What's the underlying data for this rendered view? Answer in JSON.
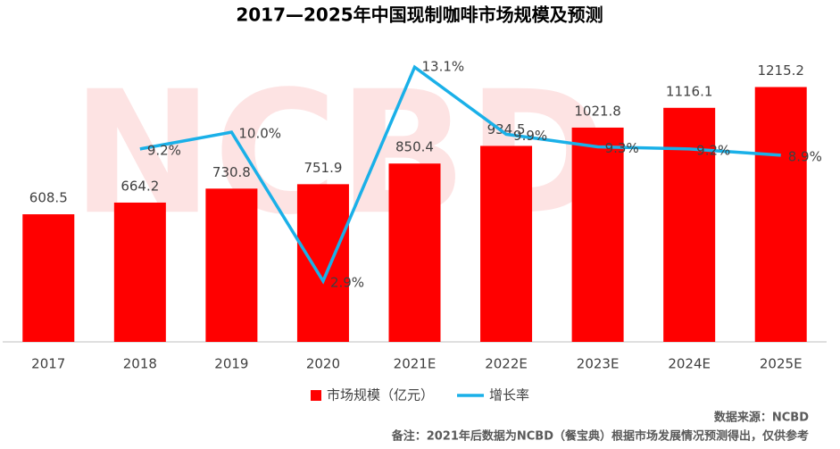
{
  "chart_data": {
    "type": "bar-line",
    "title": "2017—2025年中国现制咖啡市场规模及预测",
    "watermark": "NCBD",
    "categories": [
      "2017",
      "2018",
      "2019",
      "2020",
      "2021E",
      "2022E",
      "2023E",
      "2024E",
      "2025E"
    ],
    "series": [
      {
        "name": "市场规模（亿元）",
        "type": "bar",
        "color": "#ff0000",
        "axis": "y",
        "values": [
          608.5,
          664.2,
          730.8,
          751.9,
          850.4,
          934.5,
          1021.8,
          1116.1,
          1215.2
        ]
      },
      {
        "name": "增长率",
        "type": "line",
        "color": "#1ab0e8",
        "axis": "y2",
        "values": [
          null,
          9.2,
          10.0,
          2.9,
          13.1,
          9.9,
          9.3,
          9.2,
          8.9
        ],
        "value_labels": [
          null,
          "9.2%",
          "10.0%",
          "2.9%",
          "13.1%",
          "9.9%",
          "9.3%",
          "9.2%",
          "8.9%"
        ]
      }
    ],
    "ylim": [
      0,
      1460
    ],
    "y2lim": [
      0,
      14.6
    ],
    "source": "数据来源：NCBD",
    "note": "备注：2021年后数据为NCBD（餐宝典）根据市场发展情况预测得出，仅供参考"
  }
}
